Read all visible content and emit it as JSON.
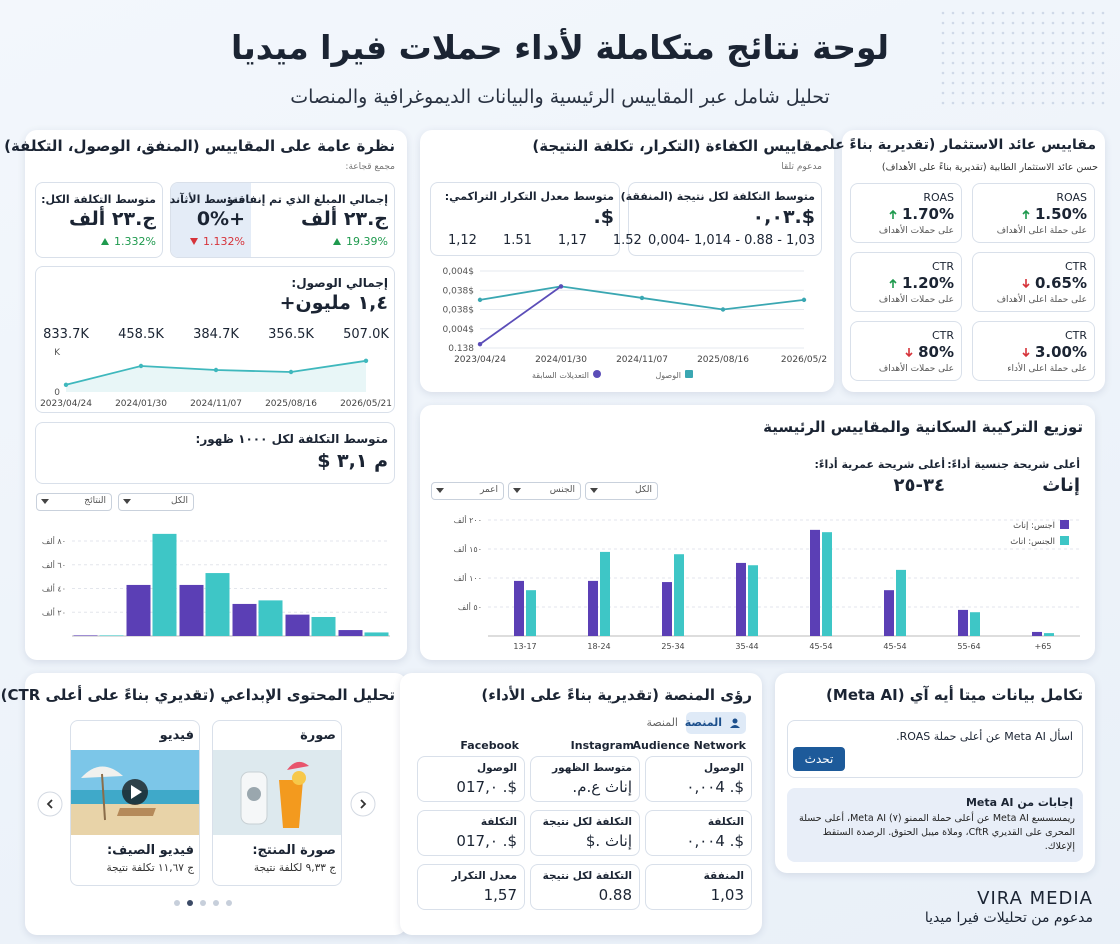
{
  "header": {
    "title": "لوحة نتائج متكاملة لأداء حملات فيرا ميديا",
    "subtitle": "تحليل شامل عبر المقاييس الرئيسية والبيانات الديموغرافية والمنصات"
  },
  "overview": {
    "title": "نظرة عامة على المقاييس (المنفق، الوصول، التكلفة)",
    "subtitle": "مجمع قجاعة:",
    "spend": {
      "label": "إجمالي المبلغ الذي تم إنفاقه:",
      "value": "ج.٢٣ ألف",
      "delta": "19.39%",
      "trend": "up"
    },
    "avg_highlight": {
      "label": "متوسط الأثآند",
      "value": "+0%",
      "delta": "1.132%",
      "trend": "down"
    },
    "avg_cost": {
      "label": "متوسط التكلفة الكل:",
      "value": "ج.٢٣ ألف",
      "delta": "1.332%",
      "trend": "up"
    },
    "reach": {
      "label": "إجمالي الوصول:",
      "value": "١,٤ مليون+",
      "chart": {
        "type": "line",
        "categories": [
          "2023/04/24",
          "2024/01/30",
          "2024/11/07",
          "2025/08/16",
          "2026/05/21"
        ],
        "top_labels": [
          "833.7K",
          "458.5K",
          "384.7K",
          "356.5K",
          "507.0K"
        ],
        "ylim": [
          0,
          1
        ],
        "yticks": [
          0,
          {
            "value": 1,
            "label": "K"
          }
        ],
        "grid": false,
        "series": [
          {
            "color": "#3fb8bd",
            "area": true,
            "values": [
              0.18,
              0.65,
              0.55,
              0.5,
              0.78
            ]
          }
        ]
      }
    },
    "cpm": {
      "label": "متوسط التكلفة لكل ١٠٠٠ ظهور:",
      "value": "م ٣,١ $"
    },
    "filters": [
      "الكل",
      "النتائج"
    ],
    "chart": {
      "type": "bar",
      "categories": [
        null,
        null,
        null,
        null,
        null,
        null
      ],
      "ylim": [
        0,
        80
      ],
      "yticks": [
        {
          "value": 20,
          "label": "٢٠ ألف"
        },
        {
          "value": 40,
          "label": "٤٠ ألف"
        },
        {
          "value": 60,
          "label": "٦٠ ألف"
        },
        {
          "value": 80,
          "label": "٨٠ ألف"
        }
      ],
      "grid": true,
      "series": [
        {
          "color": "#5b3fb5",
          "values": [
            0.5,
            43,
            43,
            27,
            18,
            5
          ]
        },
        {
          "color": "#3ec6c6",
          "values": [
            0.5,
            86,
            53,
            30,
            16,
            3
          ]
        }
      ]
    }
  },
  "efficiency": {
    "title": "مقاييس الكفاءة (التكرار، تكلفة النتيجة)",
    "subtitle": "مدعوم تلقا",
    "cost_card": {
      "label": "متوسط التكلفة لكل نتيجة (المنفقة):",
      "value": "$.٠,٠٣",
      "breakdown": "0,004- 1,014 - 0.88 - 1,03"
    },
    "freq_card": {
      "label": "متوسط معدل التكرار التراكمي:",
      "value": "$.",
      "breakdown": [
        "1,12",
        "1.51",
        "1,17",
        "1.52"
      ]
    },
    "chart": {
      "type": "line",
      "categories": [
        "2023/04/24",
        "2024/01/30",
        "2024/11/07",
        "2025/08/16",
        "2026/05/2"
      ],
      "ylim": [
        0,
        4
      ],
      "yticks": [
        {
          "value": 0,
          "label": "0.138"
        },
        {
          "value": 1,
          "label": "0,004$"
        },
        {
          "value": 2,
          "label": "0,038$"
        },
        {
          "value": 3,
          "label": "0,038$"
        },
        {
          "value": 4,
          "label": "0,004$"
        }
      ],
      "grid": true,
      "series": [
        {
          "name": "الوصول",
          "color": "#3aa7b2",
          "values": [
            2.5,
            3.2,
            2.6,
            2.0,
            2.5
          ]
        },
        {
          "name": "التعديلات السابقة",
          "color": "#5b4db8",
          "values": [
            0.2,
            3.2,
            null,
            null,
            null
          ]
        }
      ]
    }
  },
  "roi": {
    "title": "مقاييس عائد الاستثمار (تقديرية بناءً على",
    "subtitle": "حسن عائد الاستثمار الطابية (تقديرية بناءً على الأهداف)",
    "cards": [
      {
        "label": "ROAS",
        "value": "1.50%",
        "trend": "up",
        "note": "على حملة اعلى الأهداف"
      },
      {
        "label": "ROAS",
        "value": "1.70%",
        "trend": "up",
        "note": "على حملات الأهداف"
      },
      {
        "label": "CTR",
        "value": "0.65%",
        "trend": "down",
        "note": "على حملة اعلى الأهداف"
      },
      {
        "label": "CTR",
        "value": "1.20%",
        "trend": "up",
        "note": "على حملات الأهداف"
      },
      {
        "label": "CTR",
        "value": "3.00%",
        "trend": "down",
        "note": "على حملة اعلى الأداء"
      },
      {
        "label": "CTR",
        "value": "80%",
        "trend": "down",
        "note": "على حملات الأهداف"
      }
    ]
  },
  "demographics": {
    "title": "توزيع التركيبة السكانية والمقاييس الرئيسية",
    "top_gender": {
      "label": "أعلى شريحة جنسية أداءً:",
      "value": "إناث"
    },
    "top_age": {
      "label": "أعلى شريحة عمرية أداءً:",
      "value": "٣٤-٢٥"
    },
    "filters": [
      "الكل",
      "الجنس",
      "اعمر"
    ],
    "chart": {
      "type": "bar",
      "categories": [
        "13-17",
        "18-24",
        "25-34",
        "35-44",
        "45-54",
        "45-54",
        "55-64",
        "+65"
      ],
      "ylim": [
        0,
        200
      ],
      "yticks": [
        {
          "value": 50,
          "label": "٥٠ ألف"
        },
        {
          "value": 100,
          "label": "١٠٠ ألف"
        },
        {
          "value": 150,
          "label": "١٥٠ ألف"
        },
        {
          "value": 200,
          "label": "٢٠٠ ألف"
        }
      ],
      "grid": true,
      "legend": "top-right",
      "series": [
        {
          "name": "اجنس: إناث",
          "color": "#5b3fb5",
          "values": [
            95,
            95,
            93,
            126,
            183,
            79,
            45,
            7
          ]
        },
        {
          "name": "الجنس: اناث",
          "color": "#3ec6c6",
          "values": [
            79,
            145,
            141,
            122,
            179,
            114,
            41,
            5
          ]
        }
      ]
    }
  },
  "creative": {
    "title": "تحليل المحتوى الإبداعي (تقديري بناءً على أعلى CTR)",
    "cards": [
      {
        "type": "صورة",
        "name": "صورة المنتج:",
        "cost": "ج ٩,٣٣ لكلفة نتيجة"
      },
      {
        "type": "فيديو",
        "name": "فيديو الصيف:",
        "cost": "ج ١١,٦٧ تكلفة نتيجة"
      }
    ]
  },
  "platform": {
    "title": "رؤى المنصة (تقديرية بناءً على الأداء)",
    "tabs": [
      "المنصة",
      "المنصة"
    ],
    "columns": [
      "Audience Network",
      "Instagram",
      "Facebook"
    ],
    "rows": [
      [
        {
          "label": "الوصول",
          "value": "$. ٠,٠٠4"
        },
        {
          "label": "متوسط الظهور",
          "value": "إناث ع.م."
        },
        {
          "label": "الوصول",
          "value": "$. ٠,017"
        }
      ],
      [
        {
          "label": "التكلفة",
          "value": "$. ٠,٠٠4"
        },
        {
          "label": "التكلفة لكل نتيجة",
          "value": "إناث .$"
        },
        {
          "label": "التكلفة",
          "value": "$. ٠,017"
        }
      ],
      [
        {
          "label": "المنفقة",
          "value": "1,03"
        },
        {
          "label": "التكلفة لكل نتيجة",
          "value": "0.88"
        },
        {
          "label": "معدل التكرار",
          "value": "1,57"
        }
      ]
    ]
  },
  "meta_ai": {
    "title": "تكامل بيانات ميتا أيه آي (Meta AI)",
    "question": "اسأل Meta AI عن أعلى حملة ROAS.",
    "button": "تحدث",
    "answer_title": "إجابات من Meta AI",
    "answer": "ريمسسسع Meta AI عن أعلى حملة الممنو (٧) Meta AI، أعلى حسلة المحرى على القديري CftR، وملاة ميبل الحتوق. الرصدة الستقط إلإعلاك."
  },
  "footer": {
    "brand": "VIRA MEDIA",
    "caption": "مدعوم من تحليلات فيرا ميديا"
  }
}
